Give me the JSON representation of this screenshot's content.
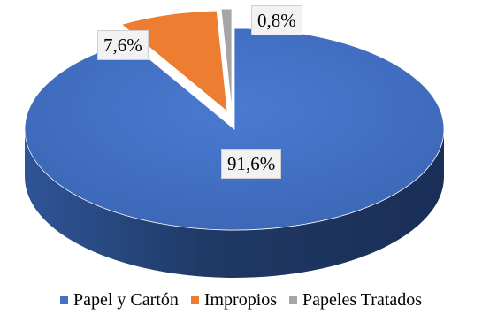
{
  "chart_data": {
    "type": "pie",
    "style": "3d",
    "categories": [
      "Papel y Cartón",
      "Impropios",
      "Papeles Tratados"
    ],
    "values": [
      91.6,
      7.6,
      0.8
    ],
    "data_labels": [
      "91,6%",
      "7,6%",
      "0,8%"
    ],
    "colors": [
      "#4472c4",
      "#ed7d31",
      "#a5a5a5"
    ],
    "legend_position": "bottom",
    "title": ""
  }
}
